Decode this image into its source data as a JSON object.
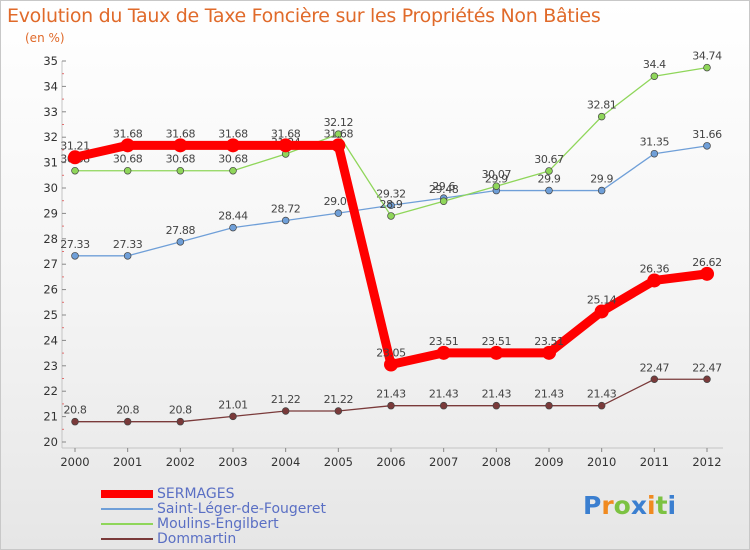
{
  "title": "Evolution du Taux de Taxe Foncière sur les Propriétés Non Bâties",
  "subtitle": "(en %)",
  "logo": {
    "text": "Proxiti",
    "colors": [
      "#3b7fd0",
      "#f08a20",
      "#7cc242"
    ]
  },
  "chart_data": {
    "type": "line",
    "title": "Evolution du Taux de Taxe Foncière sur les Propriétés Non Bâties",
    "ylabel": "(en %)",
    "xlabel": "",
    "x": [
      "2000",
      "2001",
      "2002",
      "2003",
      "2004",
      "2005",
      "2006",
      "2007",
      "2008",
      "2009",
      "2010",
      "2011",
      "2012"
    ],
    "ylim": [
      20,
      35
    ],
    "yticks": [
      20,
      21,
      22,
      23,
      24,
      25,
      26,
      27,
      28,
      29,
      30,
      31,
      32,
      33,
      34,
      35
    ],
    "grid": false,
    "legend_position": "bottom-left",
    "series": [
      {
        "name": "SERMAGES",
        "color": "#ff0000",
        "emphasis": true,
        "values": [
          31.21,
          31.68,
          31.68,
          31.68,
          31.68,
          31.68,
          23.05,
          23.51,
          23.51,
          23.51,
          25.14,
          26.36,
          26.62
        ],
        "labels": [
          "31.21",
          "31.68",
          "31.68",
          "31.68",
          "31.68",
          "31.68",
          "23.05",
          "23.51",
          "23.51",
          "23.51",
          "25.14",
          "26.36",
          "26.62"
        ]
      },
      {
        "name": "Saint-Léger-de-Fougeret",
        "color": "#6f9fd8",
        "emphasis": false,
        "values": [
          27.33,
          27.33,
          27.88,
          28.44,
          28.72,
          29.01,
          29.32,
          29.6,
          29.9,
          29.9,
          29.9,
          31.35,
          31.66
        ],
        "labels": [
          "27.33",
          "27.33",
          "27.88",
          "28.44",
          "28.72",
          "29.01",
          "29.32",
          "29.6",
          "29.9",
          "29.9",
          "29.9",
          "31.35",
          "31.66"
        ]
      },
      {
        "name": "Moulins-Engilbert",
        "color": "#8fd65a",
        "emphasis": false,
        "values": [
          30.68,
          30.68,
          30.68,
          30.68,
          31.34,
          32.12,
          28.9,
          29.48,
          30.07,
          30.67,
          32.81,
          34.4,
          34.74
        ],
        "labels": [
          "30.68",
          "30.68",
          "30.68",
          "30.68",
          "31.34",
          "32.12",
          "28.9",
          "29.48",
          "30.07",
          "30.67",
          "32.81",
          "34.4",
          "34.74"
        ]
      },
      {
        "name": "Dommartin",
        "color": "#7a3a3a",
        "emphasis": false,
        "values": [
          20.8,
          20.8,
          20.8,
          21.01,
          21.22,
          21.22,
          21.43,
          21.43,
          21.43,
          21.43,
          21.43,
          22.47,
          22.47
        ],
        "labels": [
          "20.8",
          "20.8",
          "20.8",
          "21.01",
          "21.22",
          "21.22",
          "21.43",
          "21.43",
          "21.43",
          "21.43",
          "21.43",
          "22.47",
          "22.47"
        ]
      }
    ]
  }
}
